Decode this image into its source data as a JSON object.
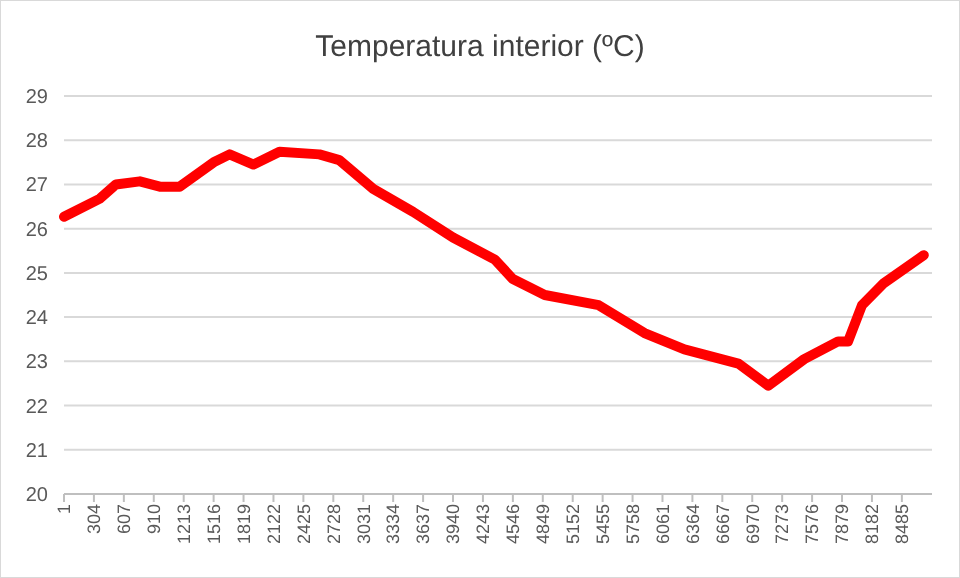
{
  "chart_data": {
    "type": "line",
    "title": "Temperatura interior (ºC)",
    "xlim": [
      1,
      8790
    ],
    "xticks": [
      1,
      304,
      607,
      910,
      1213,
      1516,
      1819,
      2122,
      2425,
      2728,
      3031,
      3334,
      3637,
      3940,
      4243,
      4546,
      4849,
      5152,
      5455,
      5758,
      6061,
      6364,
      6667,
      6970,
      7273,
      7576,
      7879,
      8182,
      8485
    ],
    "ylim": [
      20,
      29
    ],
    "yticks": [
      20,
      21,
      22,
      23,
      24,
      25,
      26,
      27,
      28,
      29
    ],
    "grid": "y",
    "series": [
      {
        "color": "#ff0000",
        "x": [
          1,
          365,
          526,
          769,
          971,
          1173,
          1516,
          1678,
          1920,
          2183,
          2587,
          2789,
          3132,
          3536,
          3940,
          4364,
          4546,
          4869,
          5415,
          5879,
          6283,
          6829,
          7132,
          7496,
          7839,
          7940,
          8081,
          8303,
          8707
        ],
        "values": [
          26.27,
          26.68,
          27.0,
          27.07,
          26.95,
          26.95,
          27.5,
          27.68,
          27.45,
          27.74,
          27.68,
          27.55,
          26.9,
          26.38,
          25.8,
          25.3,
          24.86,
          24.5,
          24.27,
          23.64,
          23.27,
          22.95,
          22.45,
          23.05,
          23.45,
          23.45,
          24.27,
          24.77,
          25.4
        ]
      }
    ]
  }
}
